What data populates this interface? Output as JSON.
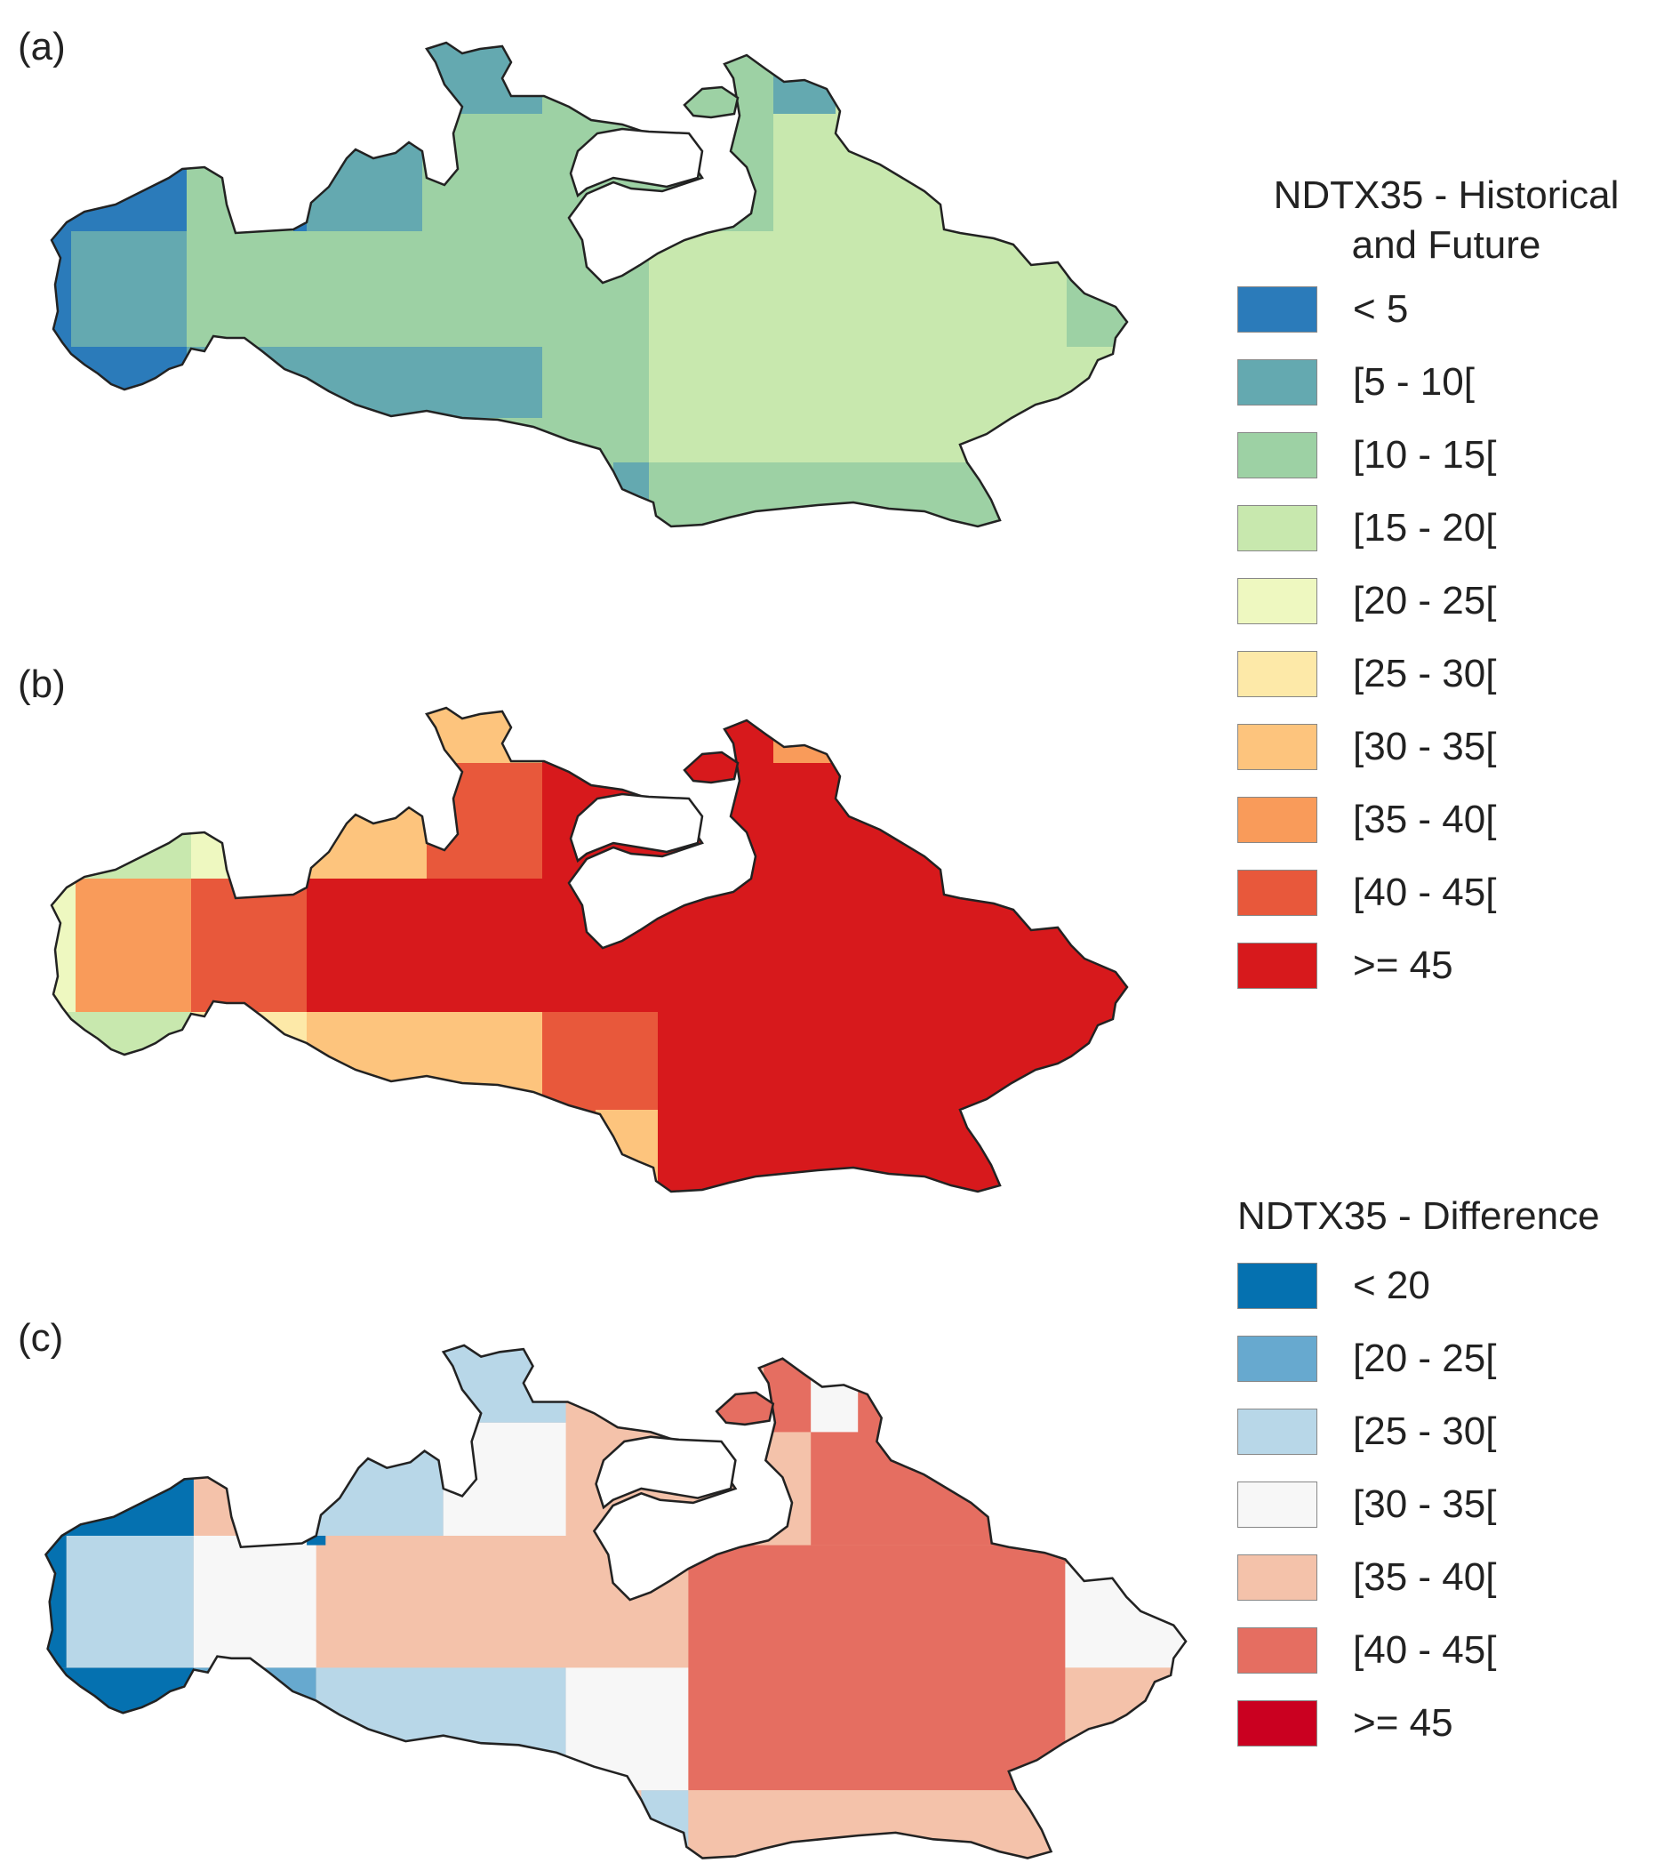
{
  "panels": {
    "a": {
      "label": "(a)"
    },
    "b": {
      "label": "(b)"
    },
    "c": {
      "label": "(c)"
    }
  },
  "legend_hist": {
    "title_line1": "NDTX35 - Historical",
    "title_line2": "and Future",
    "items": [
      {
        "label": "< 5",
        "color": "#2b7bba"
      },
      {
        "label": "[5 - 10[",
        "color": "#64a9b0"
      },
      {
        "label": "[10 - 15[",
        "color": "#9dd1a4"
      },
      {
        "label": "[15 - 20[",
        "color": "#c8e8ae"
      },
      {
        "label": "[20 - 25[",
        "color": "#eef8c0"
      },
      {
        "label": "[25 - 30[",
        "color": "#fde9a8"
      },
      {
        "label": "[30 - 35[",
        "color": "#fdc47d"
      },
      {
        "label": "[35 - 40[",
        "color": "#f99b5a"
      },
      {
        "label": "[40 - 45[",
        "color": "#e8583b"
      },
      {
        "label": ">= 45",
        "color": "#d7191c"
      }
    ]
  },
  "legend_diff": {
    "title": "NDTX35 - Difference",
    "items": [
      {
        "label": "< 20",
        "color": "#0571b0"
      },
      {
        "label": "[20 - 25[",
        "color": "#67a9cf"
      },
      {
        "label": "[25 - 30[",
        "color": "#b8d7e8"
      },
      {
        "label": "[30 - 35[",
        "color": "#f7f7f7"
      },
      {
        "label": "[35 - 40[",
        "color": "#f4c2aa"
      },
      {
        "label": "[40 - 45[",
        "color": "#e56e61"
      },
      {
        "label": ">= 45",
        "color": "#ca0020"
      }
    ]
  }
}
